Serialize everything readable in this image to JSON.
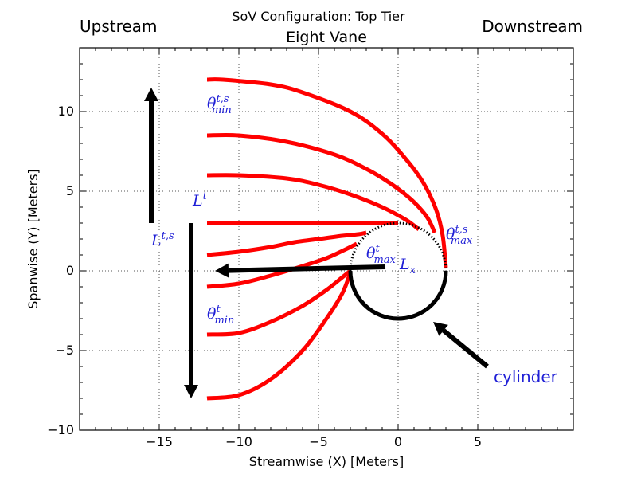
{
  "colors": {
    "vane": "#ff0000",
    "arrow": "#000000",
    "annotation": "#1f1fd6",
    "grid": "#555555"
  },
  "chart_data": {
    "type": "line",
    "suptitle": "SoV Configuration: Top Tier",
    "title": "Eight Vane",
    "corner_left": "Upstream",
    "corner_right": "Downstream",
    "xlabel": "Streamwise (X) [Meters]",
    "ylabel": "Spanwise (Y) [Meters]",
    "xlim": [
      -20,
      11
    ],
    "ylim": [
      -10,
      14
    ],
    "xticks": [
      -15,
      -10,
      -5,
      0,
      5
    ],
    "xtick_labels": [
      "−15",
      "−10",
      "−5",
      "0",
      "5"
    ],
    "yticks": [
      -5,
      0,
      5,
      10
    ],
    "ytick_labels": [
      "−5",
      "0",
      "5",
      "10"
    ],
    "extra_ytick_label": "−10",
    "grid": true,
    "series": [
      {
        "x": [
          -12,
          -11,
          -8,
          -6,
          -3,
          -1,
          0.5,
          1.6,
          2.4,
          2.8,
          3.0
        ],
        "y": [
          12,
          12,
          11.7,
          11.2,
          10,
          8.6,
          7,
          5.5,
          3.8,
          2.2,
          0.2
        ]
      },
      {
        "x": [
          -12,
          -10,
          -7,
          -4,
          -2,
          -0.5,
          0.8,
          1.8,
          2.3
        ],
        "y": [
          8.5,
          8.5,
          8.1,
          7.3,
          6.4,
          5.5,
          4.5,
          3.4,
          2.4
        ]
      },
      {
        "x": [
          -12,
          -10,
          -7,
          -5,
          -3,
          -1,
          0.5,
          1.3
        ],
        "y": [
          6,
          6,
          5.8,
          5.4,
          4.8,
          4.0,
          3.2,
          2.6
        ]
      },
      {
        "x": [
          -12,
          -6,
          0
        ],
        "y": [
          3,
          3,
          3
        ]
      },
      {
        "x": [
          -12,
          -10,
          -8,
          -6.5,
          -5,
          -3.5,
          -2.5,
          -2.0
        ],
        "y": [
          1,
          1.2,
          1.5,
          1.8,
          2.0,
          2.2,
          2.3,
          2.4
        ]
      },
      {
        "x": [
          -12,
          -10,
          -8,
          -6,
          -4.5,
          -3.4,
          -2.6
        ],
        "y": [
          -1,
          -0.8,
          -0.3,
          0.3,
          0.8,
          1.3,
          1.7
        ]
      },
      {
        "x": [
          -12,
          -10,
          -8,
          -6,
          -4.5,
          -3.5,
          -3.0
        ],
        "y": [
          -4,
          -3.9,
          -3.2,
          -2.2,
          -1.2,
          -0.4,
          0.0
        ]
      },
      {
        "x": [
          -12,
          -10,
          -8,
          -6,
          -4.5,
          -3.5,
          -3.0
        ],
        "y": [
          -8,
          -7.8,
          -6.8,
          -5.0,
          -3.0,
          -1.4,
          -0.1
        ]
      }
    ],
    "cylinder": {
      "center": [
        0,
        0
      ],
      "radius": 3
    },
    "arrows": [
      {
        "from": [
          -15.5,
          3
        ],
        "to": [
          -15.5,
          11.5
        ]
      },
      {
        "from": [
          -13,
          3
        ],
        "to": [
          -13,
          -8
        ]
      },
      {
        "from": [
          -0.8,
          0.25
        ],
        "to": [
          -11.5,
          0
        ]
      },
      {
        "from": [
          5.6,
          -6
        ],
        "to": [
          2.2,
          -3.2
        ]
      }
    ],
    "annotations": [
      {
        "base": "θ",
        "sup": "t,s",
        "sub": "min",
        "x": -12,
        "y": 10.2
      },
      {
        "base": "L",
        "sup": "t",
        "sub": "",
        "x": -12.9,
        "y": 4.1
      },
      {
        "base": "L",
        "sup": "t,s",
        "sub": "",
        "x": -15.5,
        "y": 1.6
      },
      {
        "base": "θ",
        "sup": "t",
        "sub": "max",
        "x": -2.0,
        "y": 0.8
      },
      {
        "base": "L",
        "sup": "",
        "sub": "x",
        "x": 0.1,
        "y": 0.1
      },
      {
        "base": "θ",
        "sup": "t,s",
        "sub": "max",
        "x": 3.0,
        "y": 2.0
      },
      {
        "base": "θ",
        "sup": "t",
        "sub": "min",
        "x": -12,
        "y": -3.0
      }
    ],
    "cylinder_label": "cylinder"
  }
}
